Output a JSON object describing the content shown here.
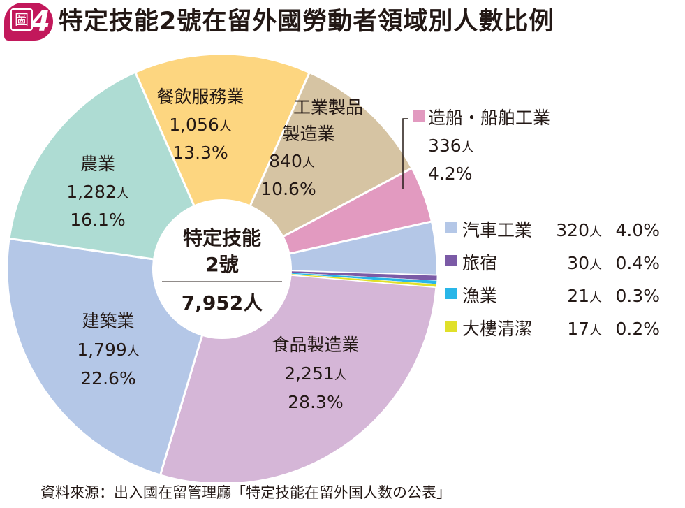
{
  "badge": {
    "char": "圖",
    "number": "4"
  },
  "chart_data": {
    "type": "pie",
    "title": "特定技能2號在留外國勞動者領域別人數比例",
    "center": {
      "line1": "特定技能",
      "line2": "2號",
      "total": "7,952",
      "unit": "人"
    },
    "unit": "人",
    "slices": [
      {
        "name": "食品製造業",
        "value": 2251,
        "value_text": "2,251",
        "percent": "28.3%",
        "color": "#d5b6d7"
      },
      {
        "name": "建築業",
        "value": 1799,
        "value_text": "1,799",
        "percent": "22.6%",
        "color": "#b4c7e7"
      },
      {
        "name": "農業",
        "value": 1282,
        "value_text": "1,282",
        "percent": "16.1%",
        "color": "#aedcd3"
      },
      {
        "name": "餐飲服務業",
        "value": 1056,
        "value_text": "1,056",
        "percent": "13.3%",
        "color": "#fdd680"
      },
      {
        "name": "工業製品製造業",
        "value": 840,
        "value_text": "840",
        "percent": "10.6%",
        "color": "#d6c4a3"
      },
      {
        "name": "造船・船舶工業",
        "value": 336,
        "value_text": "336",
        "percent": "4.2%",
        "color": "#e29ac0"
      },
      {
        "name": "汽車工業",
        "value": 320,
        "value_text": "320",
        "percent": "4.0%",
        "color": "#b4c7e7"
      },
      {
        "name": "旅宿",
        "value": 30,
        "value_text": "30",
        "percent": "0.4%",
        "color": "#7b5aa6"
      },
      {
        "name": "漁業",
        "value": 21,
        "value_text": "21",
        "percent": "0.3%",
        "color": "#29b6e8"
      },
      {
        "name": "大樓清潔",
        "value": 17,
        "value_text": "17",
        "percent": "0.2%",
        "color": "#e0e02a"
      }
    ]
  },
  "labels": {
    "food": {
      "line1": "食品製造業"
    },
    "construction": {
      "line1": "建築業"
    },
    "agriculture": {
      "line1": "農業"
    },
    "restaurant": {
      "line1": "餐飲服務業"
    },
    "industrial": {
      "line1": "工業製品",
      "line2": "製造業"
    },
    "shipbuilding": {
      "line1": "造船・船舶工業"
    }
  },
  "legend": [
    {
      "name": "汽車工業",
      "value_text": "320",
      "unit": "人",
      "percent": "4.0%",
      "color": "#b4c7e7"
    },
    {
      "name": "旅宿",
      "value_text": "30",
      "unit": "人",
      "percent": "0.4%",
      "color": "#7b5aa6"
    },
    {
      "name": "漁業",
      "value_text": "21",
      "unit": "人",
      "percent": "0.3%",
      "color": "#29b6e8"
    },
    {
      "name": "大樓清潔",
      "value_text": "17",
      "unit": "人",
      "percent": "0.2%",
      "color": "#e0e02a"
    }
  ],
  "source": "資料來源：出入國在留管理廳「特定技能在留外国人数の公表」"
}
